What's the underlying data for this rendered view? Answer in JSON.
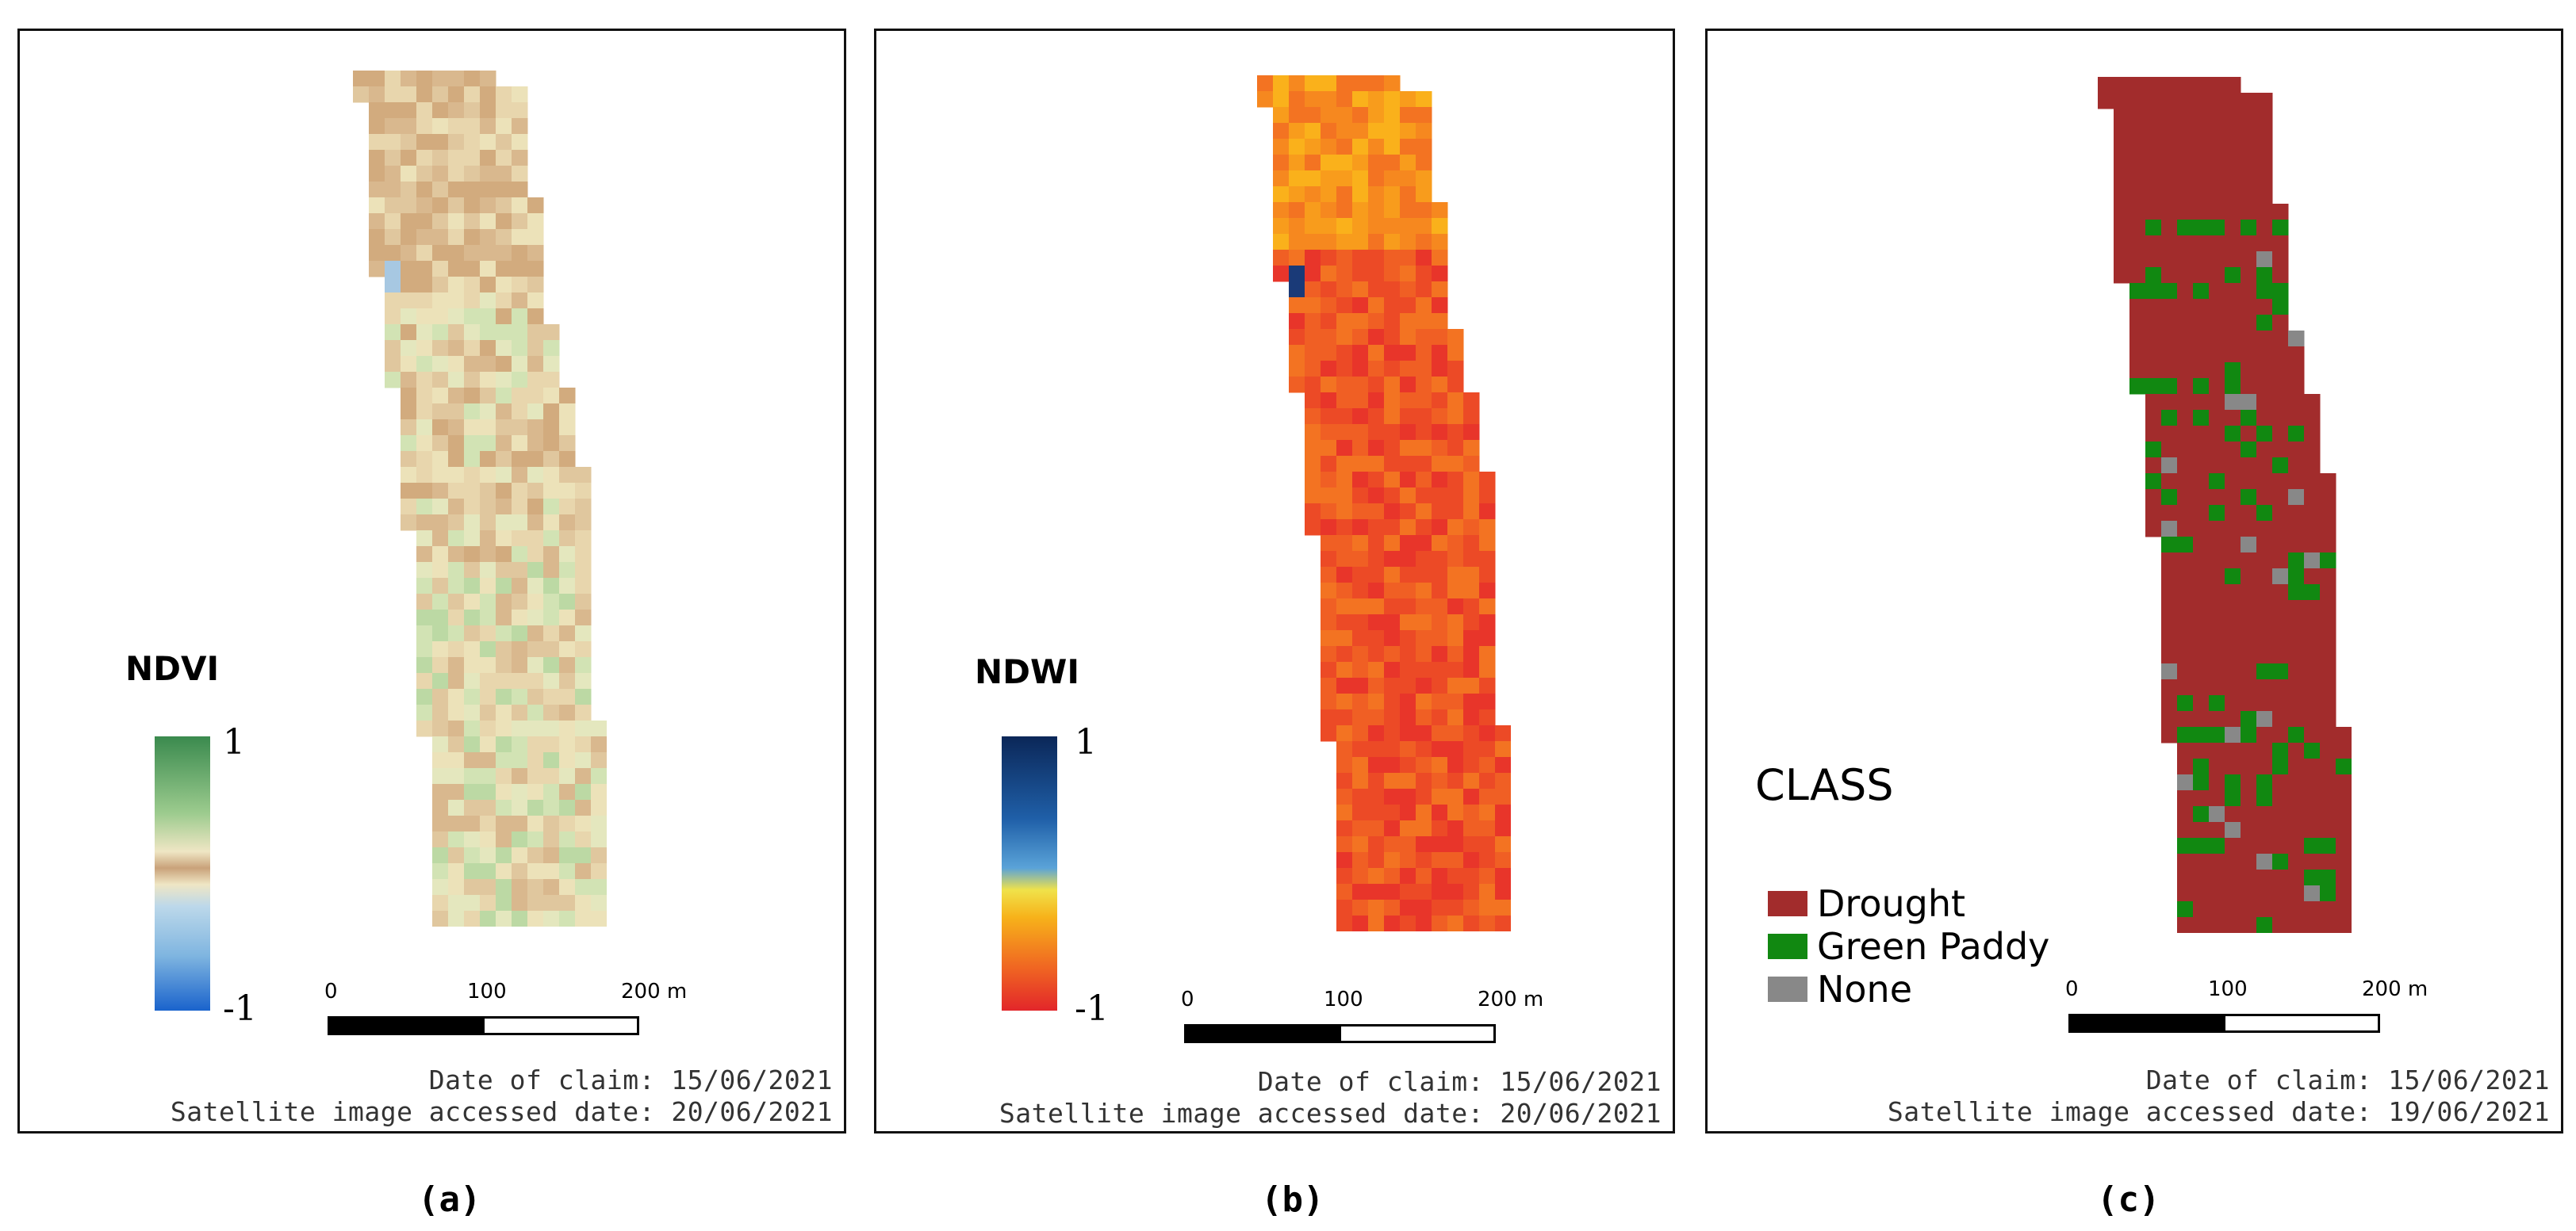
{
  "panels": {
    "a": {
      "legend_title": "NDVI",
      "legend_max": "1",
      "legend_min": "-1",
      "scale": {
        "label_0": "0",
        "label_100": "100",
        "label_200": "200 m"
      },
      "date_of_claim": "Date of claim: 15/06/2021",
      "accessed_date": "Satellite image accessed date: 20/06/2021",
      "caption": "(a)",
      "ramp_colors": [
        "#3a8a4e",
        "#9ccb8e",
        "#efe6c4",
        "#c9a27a",
        "#bcd8ea",
        "#7fb5e0",
        "#1a63cc"
      ],
      "water_color": "#a7c8e2"
    },
    "b": {
      "legend_title": "NDWI",
      "legend_max": "1",
      "legend_min": "-1",
      "scale": {
        "label_0": "0",
        "label_100": "100",
        "label_200": "200 m"
      },
      "date_of_claim": "Date of claim: 15/06/2021",
      "accessed_date": "Satellite image accessed date: 20/06/2021",
      "caption": "(b)",
      "ramp_colors": [
        "#0b2758",
        "#1f5fa8",
        "#5aa3d8",
        "#f0e24a",
        "#f7b21a",
        "#f06722",
        "#e2262a"
      ],
      "water_color": "#1a3a78"
    },
    "c": {
      "legend_title": "CLASS",
      "classes": [
        {
          "label": "Drought",
          "color": "#a22c2c"
        },
        {
          "label": "Green Paddy",
          "color": "#118811"
        },
        {
          "label": "None",
          "color": "#888888"
        }
      ],
      "scale": {
        "label_0": "0",
        "label_100": "100",
        "label_200": "200 m"
      },
      "date_of_claim": "Date of claim: 15/06/2021",
      "accessed_date": "Satellite image accessed date: 19/06/2021",
      "caption": "(c)"
    }
  }
}
